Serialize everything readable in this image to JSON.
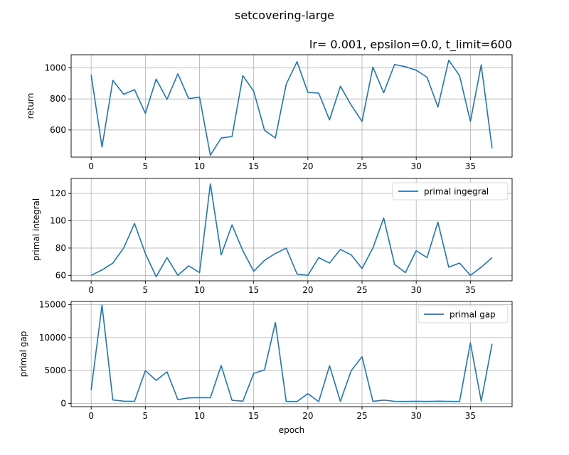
{
  "figure": {
    "suptitle": "setcovering-large",
    "subtitle": "lr= 0.001, epsilon=0.0, t_limit=600"
  },
  "chart_data": [
    {
      "type": "line",
      "ylabel": "return",
      "xlim": [
        -1.85,
        38.85
      ],
      "ylim": [
        425,
        1085
      ],
      "xticks": [
        0,
        5,
        10,
        15,
        20,
        25,
        30,
        35
      ],
      "yticks": [
        600,
        800,
        1000
      ],
      "grid": true,
      "legend": null,
      "color": "#1f77b4",
      "series": [
        {
          "values": [
            955,
            490,
            920,
            830,
            860,
            707,
            928,
            797,
            962,
            802,
            812,
            437,
            548,
            558,
            950,
            850,
            598,
            548,
            895,
            1040,
            842,
            838,
            665,
            882,
            760,
            655,
            1005,
            840,
            1022,
            1008,
            985,
            940,
            748,
            1050,
            950,
            655,
            1020,
            482
          ]
        }
      ]
    },
    {
      "type": "line",
      "ylabel": "primal integral",
      "xlim": [
        -1.85,
        38.85
      ],
      "ylim": [
        56,
        131
      ],
      "xticks": [
        0,
        5,
        10,
        15,
        20,
        25,
        30,
        35
      ],
      "yticks": [
        60,
        80,
        100,
        120
      ],
      "grid": true,
      "legend": "upper right",
      "color": "#1f77b4",
      "series": [
        {
          "name": "primal ingegral",
          "values": [
            60,
            64,
            69,
            80,
            98,
            76,
            59,
            73,
            60,
            67,
            62,
            127,
            75,
            97,
            78,
            63,
            71,
            76,
            80,
            61,
            60,
            73,
            69,
            79,
            75,
            65,
            80,
            102,
            68,
            62,
            78,
            73,
            99,
            66,
            69,
            60,
            66,
            73
          ]
        }
      ]
    },
    {
      "type": "line",
      "ylabel": "primal gap",
      "xlim": [
        -1.85,
        38.85
      ],
      "ylim": [
        -500,
        15500
      ],
      "xticks": [
        0,
        5,
        10,
        15,
        20,
        25,
        30,
        35
      ],
      "yticks": [
        0,
        5000,
        10000,
        15000
      ],
      "grid": true,
      "legend": "upper right",
      "xlabel": "epoch",
      "color": "#1f77b4",
      "series": [
        {
          "name": "primal gap",
          "values": [
            2050,
            14950,
            520,
            330,
            310,
            4980,
            3500,
            4800,
            580,
            830,
            870,
            850,
            5750,
            460,
            330,
            4550,
            5100,
            12300,
            300,
            280,
            1480,
            260,
            5720,
            300,
            4980,
            7100,
            300,
            490,
            310,
            290,
            320,
            290,
            330,
            300,
            290,
            9200,
            330,
            9050
          ]
        }
      ]
    }
  ]
}
